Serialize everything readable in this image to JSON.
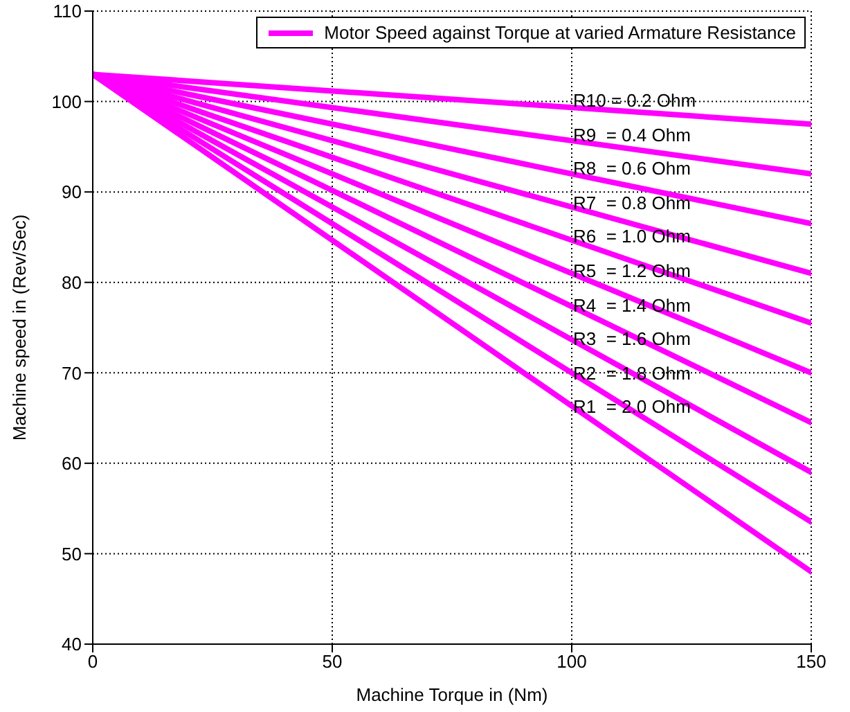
{
  "chart_data": {
    "type": "line",
    "xlabel": "Machine Torque in (Nm)",
    "ylabel": "Machine speed in (Rev/Sec)",
    "xlim": [
      0,
      150
    ],
    "xticks": [
      0,
      50,
      100,
      150
    ],
    "ylim": [
      40,
      110
    ],
    "yticks": [
      40,
      50,
      60,
      70,
      80,
      90,
      100,
      110
    ],
    "grid": true,
    "legend": "top right",
    "marker": "none",
    "line_style": "solid",
    "x": [
      0,
      150
    ],
    "series": [
      {
        "name": "Motor Speed against Torque at varied Armature Resistance",
        "color": "#ff00ff",
        "values": [
          103,
          97.5
        ]
      },
      {
        "color": "#ff00ff",
        "values": [
          103,
          92
        ]
      },
      {
        "color": "#ff00ff",
        "values": [
          103,
          86.5
        ]
      },
      {
        "color": "#ff00ff",
        "values": [
          103,
          81
        ]
      },
      {
        "color": "#ff00ff",
        "values": [
          103,
          75.5
        ]
      },
      {
        "color": "#ff00ff",
        "values": [
          103,
          70
        ]
      },
      {
        "color": "#ff00ff",
        "values": [
          103,
          64.5
        ]
      },
      {
        "color": "#ff00ff",
        "values": [
          103,
          59
        ]
      },
      {
        "color": "#ff00ff",
        "values": [
          103,
          53.5
        ]
      },
      {
        "color": "#ff00ff",
        "values": [
          103,
          48
        ]
      }
    ],
    "annotations": [
      "R10 = 0.2 Ohm",
      "R9  = 0.4 Ohm",
      "R8  = 0.6 Ohm",
      "R7  = 0.8 Ohm",
      "R6  = 1.0 Ohm",
      "R5  = 1.2 Ohm",
      "R4  = 1.4 Ohm",
      "R3  = 1.6 Ohm",
      "R2  = 1.8 Ohm",
      "R1  = 2.0 Ohm"
    ]
  }
}
